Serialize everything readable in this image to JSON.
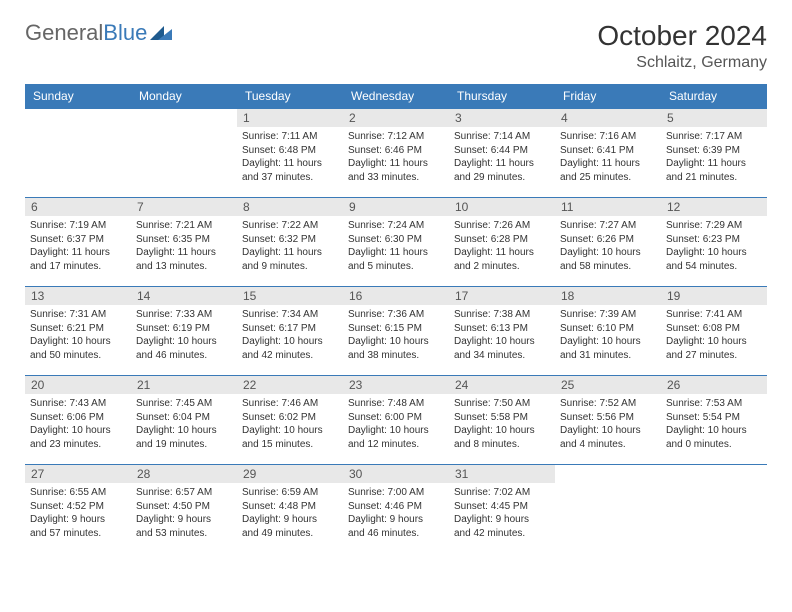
{
  "logo": {
    "part1": "General",
    "part2": "Blue"
  },
  "title": "October 2024",
  "location": "Schlaitz, Germany",
  "headers": [
    "Sunday",
    "Monday",
    "Tuesday",
    "Wednesday",
    "Thursday",
    "Friday",
    "Saturday"
  ],
  "colors": {
    "header_bg": "#3a7ab8",
    "header_text": "#ffffff",
    "daynum_bg": "#e8e8e8",
    "border": "#3a7ab8",
    "logo_gray": "#666666",
    "logo_blue": "#3a7ab8"
  },
  "weeks": [
    [
      null,
      null,
      {
        "n": "1",
        "l1": "Sunrise: 7:11 AM",
        "l2": "Sunset: 6:48 PM",
        "l3": "Daylight: 11 hours",
        "l4": "and 37 minutes."
      },
      {
        "n": "2",
        "l1": "Sunrise: 7:12 AM",
        "l2": "Sunset: 6:46 PM",
        "l3": "Daylight: 11 hours",
        "l4": "and 33 minutes."
      },
      {
        "n": "3",
        "l1": "Sunrise: 7:14 AM",
        "l2": "Sunset: 6:44 PM",
        "l3": "Daylight: 11 hours",
        "l4": "and 29 minutes."
      },
      {
        "n": "4",
        "l1": "Sunrise: 7:16 AM",
        "l2": "Sunset: 6:41 PM",
        "l3": "Daylight: 11 hours",
        "l4": "and 25 minutes."
      },
      {
        "n": "5",
        "l1": "Sunrise: 7:17 AM",
        "l2": "Sunset: 6:39 PM",
        "l3": "Daylight: 11 hours",
        "l4": "and 21 minutes."
      }
    ],
    [
      {
        "n": "6",
        "l1": "Sunrise: 7:19 AM",
        "l2": "Sunset: 6:37 PM",
        "l3": "Daylight: 11 hours",
        "l4": "and 17 minutes."
      },
      {
        "n": "7",
        "l1": "Sunrise: 7:21 AM",
        "l2": "Sunset: 6:35 PM",
        "l3": "Daylight: 11 hours",
        "l4": "and 13 minutes."
      },
      {
        "n": "8",
        "l1": "Sunrise: 7:22 AM",
        "l2": "Sunset: 6:32 PM",
        "l3": "Daylight: 11 hours",
        "l4": "and 9 minutes."
      },
      {
        "n": "9",
        "l1": "Sunrise: 7:24 AM",
        "l2": "Sunset: 6:30 PM",
        "l3": "Daylight: 11 hours",
        "l4": "and 5 minutes."
      },
      {
        "n": "10",
        "l1": "Sunrise: 7:26 AM",
        "l2": "Sunset: 6:28 PM",
        "l3": "Daylight: 11 hours",
        "l4": "and 2 minutes."
      },
      {
        "n": "11",
        "l1": "Sunrise: 7:27 AM",
        "l2": "Sunset: 6:26 PM",
        "l3": "Daylight: 10 hours",
        "l4": "and 58 minutes."
      },
      {
        "n": "12",
        "l1": "Sunrise: 7:29 AM",
        "l2": "Sunset: 6:23 PM",
        "l3": "Daylight: 10 hours",
        "l4": "and 54 minutes."
      }
    ],
    [
      {
        "n": "13",
        "l1": "Sunrise: 7:31 AM",
        "l2": "Sunset: 6:21 PM",
        "l3": "Daylight: 10 hours",
        "l4": "and 50 minutes."
      },
      {
        "n": "14",
        "l1": "Sunrise: 7:33 AM",
        "l2": "Sunset: 6:19 PM",
        "l3": "Daylight: 10 hours",
        "l4": "and 46 minutes."
      },
      {
        "n": "15",
        "l1": "Sunrise: 7:34 AM",
        "l2": "Sunset: 6:17 PM",
        "l3": "Daylight: 10 hours",
        "l4": "and 42 minutes."
      },
      {
        "n": "16",
        "l1": "Sunrise: 7:36 AM",
        "l2": "Sunset: 6:15 PM",
        "l3": "Daylight: 10 hours",
        "l4": "and 38 minutes."
      },
      {
        "n": "17",
        "l1": "Sunrise: 7:38 AM",
        "l2": "Sunset: 6:13 PM",
        "l3": "Daylight: 10 hours",
        "l4": "and 34 minutes."
      },
      {
        "n": "18",
        "l1": "Sunrise: 7:39 AM",
        "l2": "Sunset: 6:10 PM",
        "l3": "Daylight: 10 hours",
        "l4": "and 31 minutes."
      },
      {
        "n": "19",
        "l1": "Sunrise: 7:41 AM",
        "l2": "Sunset: 6:08 PM",
        "l3": "Daylight: 10 hours",
        "l4": "and 27 minutes."
      }
    ],
    [
      {
        "n": "20",
        "l1": "Sunrise: 7:43 AM",
        "l2": "Sunset: 6:06 PM",
        "l3": "Daylight: 10 hours",
        "l4": "and 23 minutes."
      },
      {
        "n": "21",
        "l1": "Sunrise: 7:45 AM",
        "l2": "Sunset: 6:04 PM",
        "l3": "Daylight: 10 hours",
        "l4": "and 19 minutes."
      },
      {
        "n": "22",
        "l1": "Sunrise: 7:46 AM",
        "l2": "Sunset: 6:02 PM",
        "l3": "Daylight: 10 hours",
        "l4": "and 15 minutes."
      },
      {
        "n": "23",
        "l1": "Sunrise: 7:48 AM",
        "l2": "Sunset: 6:00 PM",
        "l3": "Daylight: 10 hours",
        "l4": "and 12 minutes."
      },
      {
        "n": "24",
        "l1": "Sunrise: 7:50 AM",
        "l2": "Sunset: 5:58 PM",
        "l3": "Daylight: 10 hours",
        "l4": "and 8 minutes."
      },
      {
        "n": "25",
        "l1": "Sunrise: 7:52 AM",
        "l2": "Sunset: 5:56 PM",
        "l3": "Daylight: 10 hours",
        "l4": "and 4 minutes."
      },
      {
        "n": "26",
        "l1": "Sunrise: 7:53 AM",
        "l2": "Sunset: 5:54 PM",
        "l3": "Daylight: 10 hours",
        "l4": "and 0 minutes."
      }
    ],
    [
      {
        "n": "27",
        "l1": "Sunrise: 6:55 AM",
        "l2": "Sunset: 4:52 PM",
        "l3": "Daylight: 9 hours",
        "l4": "and 57 minutes."
      },
      {
        "n": "28",
        "l1": "Sunrise: 6:57 AM",
        "l2": "Sunset: 4:50 PM",
        "l3": "Daylight: 9 hours",
        "l4": "and 53 minutes."
      },
      {
        "n": "29",
        "l1": "Sunrise: 6:59 AM",
        "l2": "Sunset: 4:48 PM",
        "l3": "Daylight: 9 hours",
        "l4": "and 49 minutes."
      },
      {
        "n": "30",
        "l1": "Sunrise: 7:00 AM",
        "l2": "Sunset: 4:46 PM",
        "l3": "Daylight: 9 hours",
        "l4": "and 46 minutes."
      },
      {
        "n": "31",
        "l1": "Sunrise: 7:02 AM",
        "l2": "Sunset: 4:45 PM",
        "l3": "Daylight: 9 hours",
        "l4": "and 42 minutes."
      },
      null,
      null
    ]
  ]
}
